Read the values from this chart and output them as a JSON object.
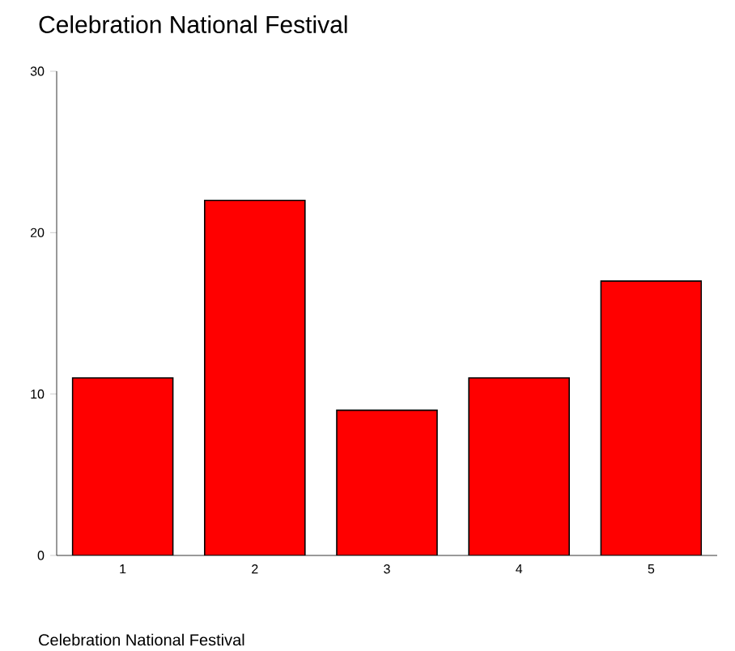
{
  "chart_data": {
    "type": "bar",
    "title": "Celebration National Festival",
    "xlabel": "Celebration National Festival",
    "categories": [
      "1",
      "2",
      "3",
      "4",
      "5"
    ],
    "values": [
      11,
      22,
      9,
      11,
      17
    ],
    "color": "#ff0000",
    "ylim": [
      0,
      30
    ],
    "yticks": [
      0,
      10,
      20,
      30
    ]
  }
}
